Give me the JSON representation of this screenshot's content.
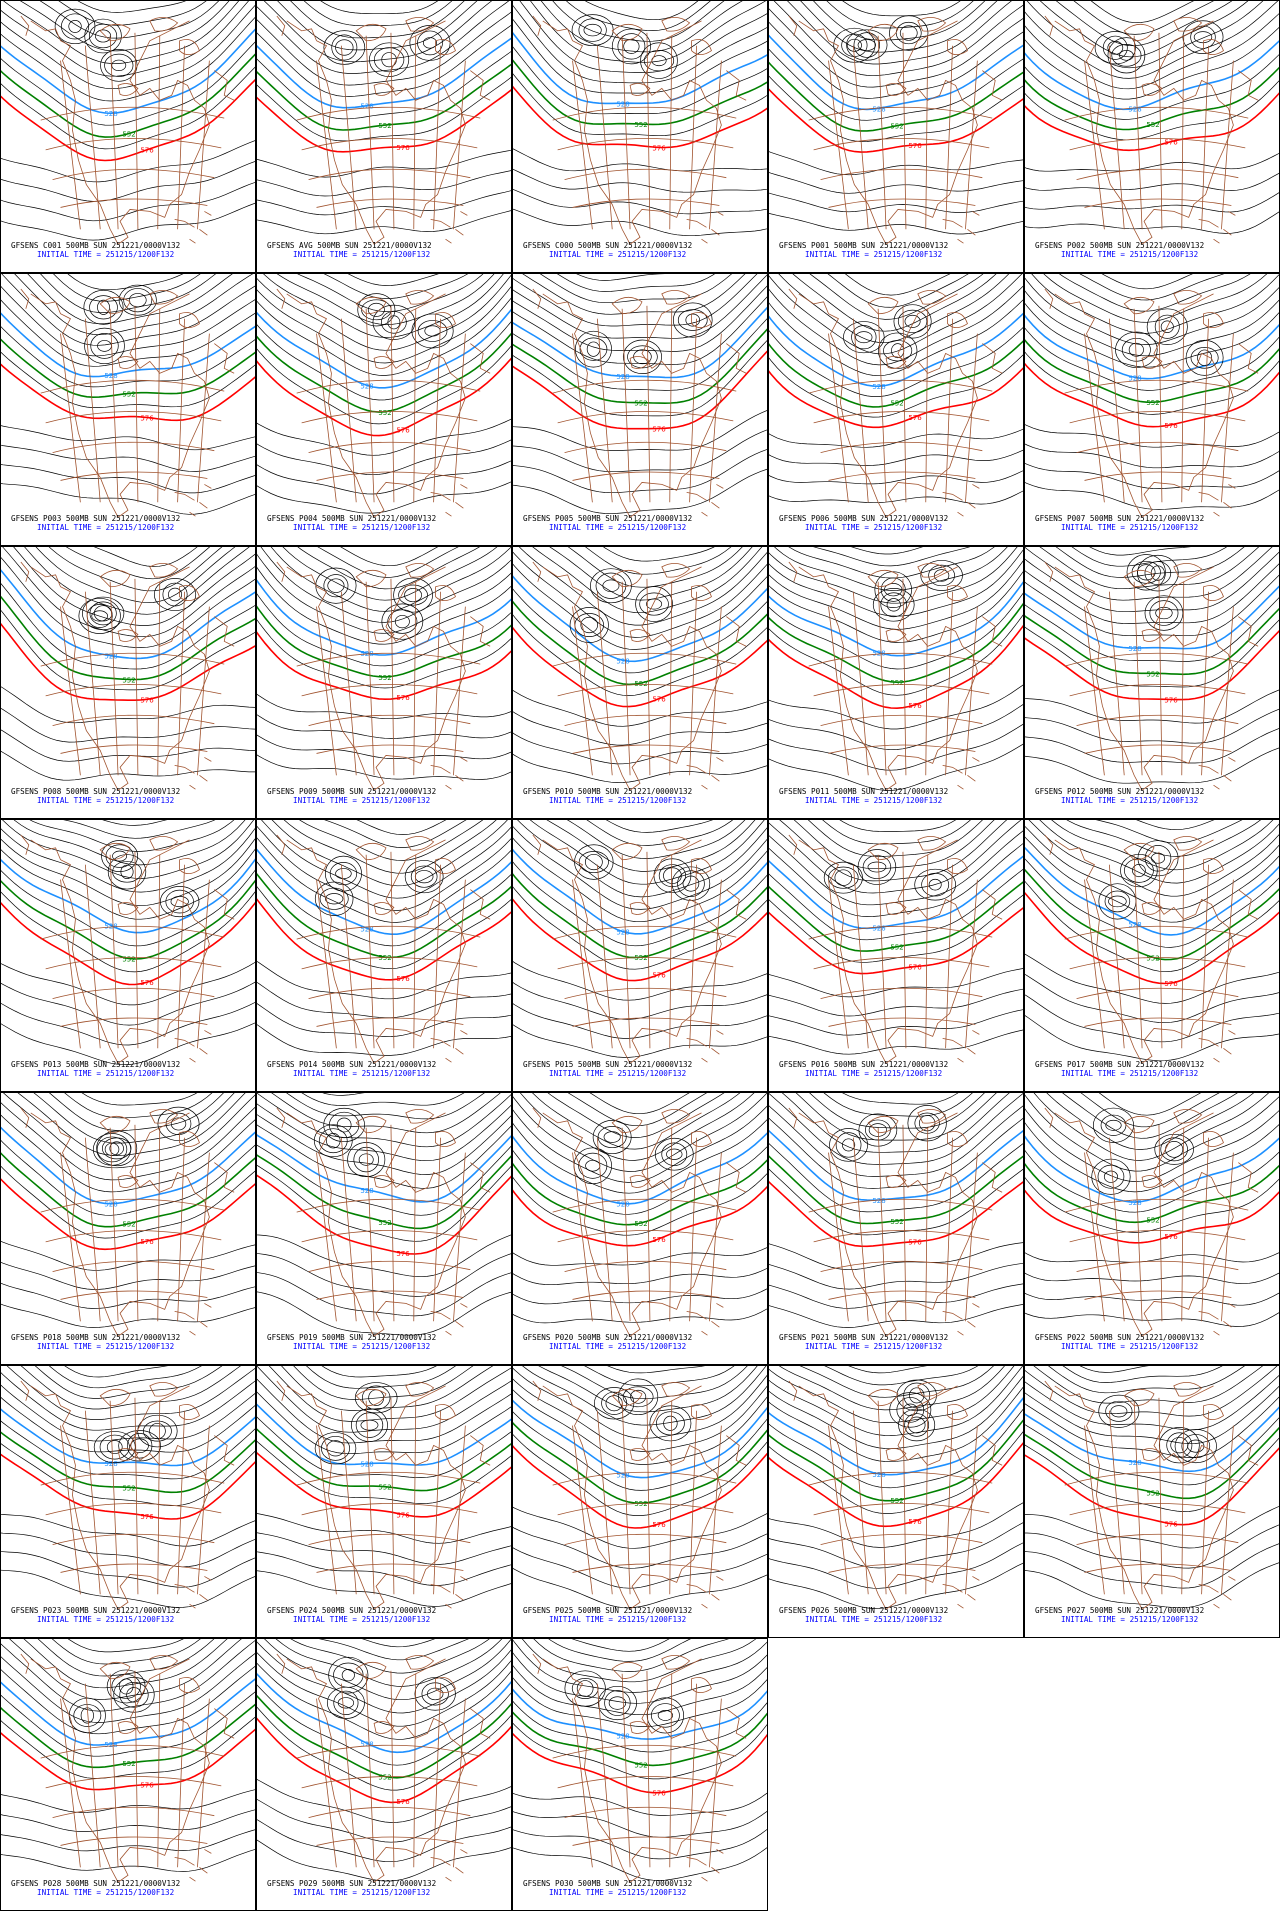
{
  "panels": [
    {
      "title": "GFSENS C001 500MB SUN 251221/0000V132",
      "initial_time": "INITIAL TIME = 251215/1200F132"
    },
    {
      "title": "GFSENS AVG 500MB SUN 251221/0000V132",
      "initial_time": "INITIAL TIME = 251215/1200F132"
    },
    {
      "title": "GFSENS C000 500MB SUN 251221/0000V132",
      "initial_time": "INITIAL TIME = 251215/1200F132"
    },
    {
      "title": "GFSENS P001 500MB SUN 251221/0000V132",
      "initial_time": "INITIAL TIME = 251215/1200F132"
    },
    {
      "title": "GFSENS P002 500MB SUN 251221/0000V132",
      "initial_time": "INITIAL TIME = 251215/1200F132"
    },
    {
      "title": "GFSENS P003 500MB SUN 251221/0000V132",
      "initial_time": "INITIAL TIME = 251215/1200F132"
    },
    {
      "title": "GFSENS P004 500MB SUN 251221/0000V132",
      "initial_time": "INITIAL TIME = 251215/1200F132"
    },
    {
      "title": "GFSENS P005 500MB SUN 251221/0000V132",
      "initial_time": "INITIAL TIME = 251215/1200F132"
    },
    {
      "title": "GFSENS P006 500MB SUN 251221/0000V132",
      "initial_time": "INITIAL TIME = 251215/1200F132"
    },
    {
      "title": "GFSENS P007 500MB SUN 251221/0000V132",
      "initial_time": "INITIAL TIME = 251215/1200F132"
    },
    {
      "title": "GFSENS P008 500MB SUN 251221/0000V132",
      "initial_time": "INITIAL TIME = 251215/1200F132"
    },
    {
      "title": "GFSENS P009 500MB SUN 251221/0000V132",
      "initial_time": "INITIAL TIME = 251215/1200F132"
    },
    {
      "title": "GFSENS P010 500MB SUN 251221/0000V132",
      "initial_time": "INITIAL TIME = 251215/1200F132"
    },
    {
      "title": "GFSENS P011 500MB SUN 251221/0000V132",
      "initial_time": "INITIAL TIME = 251215/1200F132"
    },
    {
      "title": "GFSENS P012 500MB SUN 251221/0000V132",
      "initial_time": "INITIAL TIME = 251215/1200F132"
    },
    {
      "title": "GFSENS P013 500MB SUN 251221/0000V132",
      "initial_time": "INITIAL TIME = 251215/1200F132"
    },
    {
      "title": "GFSENS P014 500MB SUN 251221/0000V132",
      "initial_time": "INITIAL TIME = 251215/1200F132"
    },
    {
      "title": "GFSENS P015 500MB SUN 251221/0000V132",
      "initial_time": "INITIAL TIME = 251215/1200F132"
    },
    {
      "title": "GFSENS P016 500MB SUN 251221/0000V132",
      "initial_time": "INITIAL TIME = 251215/1200F132"
    },
    {
      "title": "GFSENS P017 500MB SUN 251221/0000V132",
      "initial_time": "INITIAL TIME = 251215/1200F132"
    },
    {
      "title": "GFSENS P018 500MB SUN 251221/0000V132",
      "initial_time": "INITIAL TIME = 251215/1200F132"
    },
    {
      "title": "GFSENS P019 500MB SUN 251221/0000V132",
      "initial_time": "INITIAL TIME = 251215/1200F132"
    },
    {
      "title": "GFSENS P020 500MB SUN 251221/0000V132",
      "initial_time": "INITIAL TIME = 251215/1200F132"
    },
    {
      "title": "GFSENS P021 500MB SUN 251221/0000V132",
      "initial_time": "INITIAL TIME = 251215/1200F132"
    },
    {
      "title": "GFSENS P022 500MB SUN 251221/0000V132",
      "initial_time": "INITIAL TIME = 251215/1200F132"
    },
    {
      "title": "GFSENS P023 500MB SUN 251221/0000V132",
      "initial_time": "INITIAL TIME = 251215/1200F132"
    },
    {
      "title": "GFSENS P024 500MB SUN 251221/0000V132",
      "initial_time": "INITIAL TIME = 251215/1200F132"
    },
    {
      "title": "GFSENS P025 500MB SUN 251221/0000V132",
      "initial_time": "INITIAL TIME = 251215/1200F132"
    },
    {
      "title": "GFSENS P026 500MB SUN 251221/0000V132",
      "initial_time": "INITIAL TIME = 251215/1200F132"
    },
    {
      "title": "GFSENS P027 500MB SUN 251221/0000V132",
      "initial_time": "INITIAL TIME = 251215/1200F132"
    },
    {
      "title": "GFSENS P028 500MB SUN 251221/0000V132",
      "initial_time": "INITIAL TIME = 251215/1200F132"
    },
    {
      "title": "GFSENS P029 500MB SUN 251221/0000V132",
      "initial_time": "INITIAL TIME = 251215/1200F132"
    },
    {
      "title": "GFSENS P030 500MB SUN 251221/0000V132",
      "initial_time": "INITIAL TIME = 251215/1200F132"
    }
  ],
  "contour_labels": [
    "528",
    "552",
    "576"
  ]
}
